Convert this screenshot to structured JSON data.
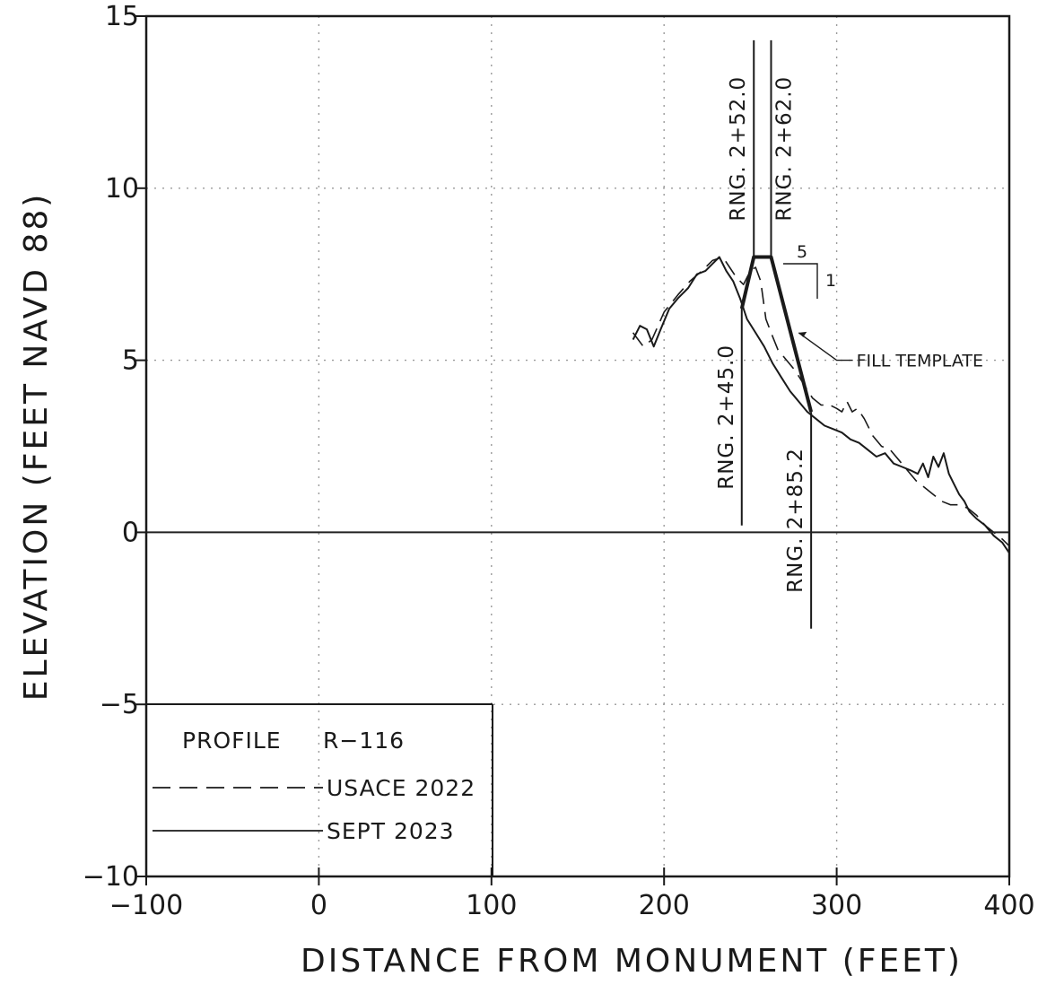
{
  "chart_data": {
    "type": "line",
    "title": "",
    "xlabel": "DISTANCE FROM MONUMENT (FEET)",
    "ylabel": "ELEVATION (FEET NAVD 88)",
    "xlim": [
      -100,
      400
    ],
    "ylim": [
      -10,
      15
    ],
    "x_ticks": [
      -100,
      0,
      100,
      200,
      300,
      400
    ],
    "x_tick_labels": [
      "−100",
      "0",
      "100",
      "200",
      "300",
      "400"
    ],
    "y_ticks": [
      -10,
      -5,
      0,
      5,
      10,
      15
    ],
    "y_tick_labels": [
      "−10",
      "−5",
      "0",
      "5",
      "10",
      "15"
    ],
    "grid": true,
    "legend": {
      "placement": "bottom-left",
      "title": "PROFILE",
      "profile_id": "R−116",
      "entries": [
        {
          "label": "USACE 2022",
          "style": "dashed"
        },
        {
          "label": "SEPT 2023",
          "style": "solid"
        }
      ]
    },
    "series": [
      {
        "name": "USACE 2022",
        "style": "dashed",
        "points": [
          [
            182,
            5.8
          ],
          [
            188,
            5.4
          ],
          [
            193,
            5.6
          ],
          [
            200,
            6.4
          ],
          [
            208,
            6.9
          ],
          [
            215,
            7.3
          ],
          [
            222,
            7.6
          ],
          [
            228,
            7.9
          ],
          [
            234,
            8.0
          ],
          [
            238,
            7.7
          ],
          [
            242,
            7.4
          ],
          [
            246,
            7.2
          ],
          [
            250,
            7.6
          ],
          [
            253,
            7.7
          ],
          [
            256,
            7.3
          ],
          [
            259,
            6.2
          ],
          [
            262,
            5.8
          ],
          [
            266,
            5.3
          ],
          [
            271,
            5.0
          ],
          [
            276,
            4.7
          ],
          [
            281,
            4.3
          ],
          [
            286,
            3.9
          ],
          [
            291,
            3.7
          ],
          [
            296,
            3.7
          ],
          [
            300,
            3.6
          ],
          [
            303,
            3.5
          ],
          [
            306,
            3.8
          ],
          [
            309,
            3.5
          ],
          [
            312,
            3.6
          ],
          [
            316,
            3.3
          ],
          [
            321,
            2.8
          ],
          [
            326,
            2.5
          ],
          [
            331,
            2.4
          ],
          [
            336,
            2.1
          ],
          [
            341,
            1.8
          ],
          [
            346,
            1.5
          ],
          [
            351,
            1.3
          ],
          [
            356,
            1.1
          ],
          [
            361,
            0.9
          ],
          [
            366,
            0.8
          ],
          [
            371,
            0.8
          ],
          [
            376,
            0.7
          ],
          [
            381,
            0.5
          ],
          [
            386,
            0.2
          ],
          [
            391,
            0.0
          ],
          [
            396,
            -0.2
          ],
          [
            400,
            -0.4
          ]
        ]
      },
      {
        "name": "SEPT 2023",
        "style": "solid",
        "points": [
          [
            182,
            5.6
          ],
          [
            186,
            6.0
          ],
          [
            190,
            5.9
          ],
          [
            194,
            5.4
          ],
          [
            198,
            5.9
          ],
          [
            203,
            6.5
          ],
          [
            208,
            6.8
          ],
          [
            214,
            7.1
          ],
          [
            219,
            7.5
          ],
          [
            224,
            7.6
          ],
          [
            228,
            7.8
          ],
          [
            232,
            8.0
          ],
          [
            236,
            7.6
          ],
          [
            240,
            7.3
          ],
          [
            244,
            6.8
          ],
          [
            248,
            6.2
          ],
          [
            253,
            5.8
          ],
          [
            258,
            5.4
          ],
          [
            263,
            4.9
          ],
          [
            268,
            4.5
          ],
          [
            273,
            4.1
          ],
          [
            278,
            3.8
          ],
          [
            283,
            3.5
          ],
          [
            288,
            3.3
          ],
          [
            293,
            3.1
          ],
          [
            298,
            3.0
          ],
          [
            303,
            2.9
          ],
          [
            308,
            2.7
          ],
          [
            313,
            2.6
          ],
          [
            318,
            2.4
          ],
          [
            323,
            2.2
          ],
          [
            328,
            2.3
          ],
          [
            333,
            2.0
          ],
          [
            338,
            1.9
          ],
          [
            343,
            1.8
          ],
          [
            347,
            1.7
          ],
          [
            350,
            2.0
          ],
          [
            353,
            1.6
          ],
          [
            356,
            2.2
          ],
          [
            359,
            1.9
          ],
          [
            362,
            2.3
          ],
          [
            365,
            1.7
          ],
          [
            368,
            1.4
          ],
          [
            371,
            1.1
          ],
          [
            374,
            0.9
          ],
          [
            377,
            0.6
          ],
          [
            381,
            0.4
          ],
          [
            386,
            0.2
          ],
          [
            391,
            -0.1
          ],
          [
            396,
            -0.3
          ],
          [
            400,
            -0.6
          ]
        ]
      },
      {
        "name": "FILL TEMPLATE",
        "style": "bold",
        "points": [
          [
            245,
            6.5
          ],
          [
            252,
            8.0
          ],
          [
            262,
            8.0
          ],
          [
            285.2,
            3.5
          ]
        ]
      }
    ],
    "reference_line": {
      "y": 0
    },
    "range_markers": [
      {
        "label": "RNG. 2+52.0",
        "x": 252.0,
        "y_from": 8.0,
        "y_to": 14.3,
        "text_side": "left"
      },
      {
        "label": "RNG. 2+62.0",
        "x": 262.0,
        "y_from": 8.0,
        "y_to": 14.3,
        "text_side": "right"
      },
      {
        "label": "RNG. 2+45.0",
        "x": 245.0,
        "y_from": 0.2,
        "y_to": 6.5,
        "text_side": "left"
      },
      {
        "label": "RNG. 2+85.2",
        "x": 285.2,
        "y_from": -2.8,
        "y_to": 3.5,
        "text_side": "left"
      }
    ],
    "annotations": [
      {
        "text": "FILL TEMPLATE",
        "x": 300,
        "y": 5.0,
        "arrow_to": [
          278,
          5.8
        ]
      },
      {
        "text": "5",
        "kind": "slope_run"
      },
      {
        "text": "1",
        "kind": "slope_rise"
      }
    ]
  }
}
